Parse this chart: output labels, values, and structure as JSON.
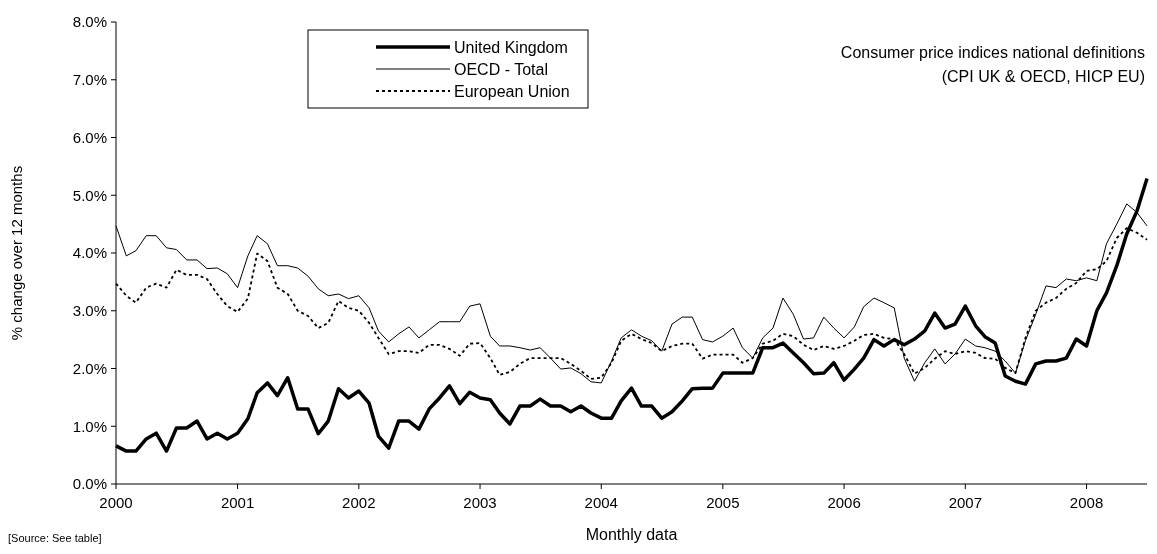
{
  "chart_data": {
    "type": "line",
    "xlabel": "Monthly data",
    "ylabel": "% change over 12 months",
    "annotations": [
      "Consumer price indices national definitions",
      "(CPI UK & OECD, HICP EU)",
      "[Source: See table]"
    ],
    "x": [
      "2000-01",
      "2000-02",
      "2000-03",
      "2000-04",
      "2000-05",
      "2000-06",
      "2000-07",
      "2000-08",
      "2000-09",
      "2000-10",
      "2000-11",
      "2000-12",
      "2001-01",
      "2001-02",
      "2001-03",
      "2001-04",
      "2001-05",
      "2001-06",
      "2001-07",
      "2001-08",
      "2001-09",
      "2001-10",
      "2001-11",
      "2001-12",
      "2002-01",
      "2002-02",
      "2002-03",
      "2002-04",
      "2002-05",
      "2002-06",
      "2002-07",
      "2002-08",
      "2002-09",
      "2002-10",
      "2002-11",
      "2002-12",
      "2003-01",
      "2003-02",
      "2003-03",
      "2003-04",
      "2003-05",
      "2003-06",
      "2003-07",
      "2003-08",
      "2003-09",
      "2003-10",
      "2003-11",
      "2003-12",
      "2004-01",
      "2004-02",
      "2004-03",
      "2004-04",
      "2004-05",
      "2004-06",
      "2004-07",
      "2004-08",
      "2004-09",
      "2004-10",
      "2004-11",
      "2004-12",
      "2005-01",
      "2005-02",
      "2005-03",
      "2005-04",
      "2005-05",
      "2005-06",
      "2005-07",
      "2005-08",
      "2005-09",
      "2005-10",
      "2005-11",
      "2005-12",
      "2006-01",
      "2006-02",
      "2006-03",
      "2006-04",
      "2006-05",
      "2006-06",
      "2006-07",
      "2006-08",
      "2006-09",
      "2006-10",
      "2006-11",
      "2006-12",
      "2007-01",
      "2007-02",
      "2007-03",
      "2007-04",
      "2007-05",
      "2007-06",
      "2007-07",
      "2007-08",
      "2007-09",
      "2007-10",
      "2007-11",
      "2007-12",
      "2008-01",
      "2008-02",
      "2008-03",
      "2008-04",
      "2008-05",
      "2008-06",
      "2008-07"
    ],
    "series": [
      {
        "name": "United Kingdom",
        "color": "#000000",
        "line_style": "solid",
        "values": [
          0.66,
          0.57,
          0.57,
          0.78,
          0.88,
          0.57,
          0.97,
          0.97,
          1.09,
          0.78,
          0.88,
          0.78,
          0.88,
          1.13,
          1.58,
          1.75,
          1.53,
          1.84,
          1.3,
          1.3,
          0.87,
          1.09,
          1.65,
          1.49,
          1.61,
          1.4,
          0.83,
          0.62,
          1.09,
          1.09,
          0.95,
          1.3,
          1.49,
          1.7,
          1.39,
          1.59,
          1.49,
          1.46,
          1.23,
          1.04,
          1.35,
          1.35,
          1.47,
          1.35,
          1.35,
          1.25,
          1.35,
          1.23,
          1.14,
          1.14,
          1.44,
          1.66,
          1.35,
          1.35,
          1.14,
          1.25,
          1.44,
          1.65,
          1.66,
          1.66,
          1.92,
          1.92,
          1.92,
          1.92,
          2.36,
          2.36,
          2.44,
          2.27,
          2.1,
          1.91,
          1.92,
          2.1,
          1.8,
          1.99,
          2.18,
          2.5,
          2.39,
          2.5,
          2.41,
          2.51,
          2.65,
          2.96,
          2.7,
          2.77,
          3.08,
          2.74,
          2.55,
          2.44,
          1.87,
          1.78,
          1.73,
          2.08,
          2.13,
          2.13,
          2.18,
          2.51,
          2.39,
          3.0,
          3.31,
          3.78,
          4.33,
          4.73,
          5.29
        ]
      },
      {
        "name": "OECD - Total",
        "color": "#000000",
        "line_style": "solid",
        "values": [
          4.47,
          3.95,
          4.04,
          4.3,
          4.3,
          4.09,
          4.06,
          3.88,
          3.88,
          3.73,
          3.74,
          3.64,
          3.4,
          3.95,
          4.3,
          4.16,
          3.78,
          3.78,
          3.74,
          3.6,
          3.38,
          3.26,
          3.29,
          3.21,
          3.26,
          3.05,
          2.65,
          2.46,
          2.6,
          2.72,
          2.53,
          2.67,
          2.81,
          2.81,
          2.81,
          3.08,
          3.12,
          2.56,
          2.39,
          2.39,
          2.36,
          2.32,
          2.36,
          2.18,
          1.99,
          2.01,
          1.91,
          1.77,
          1.75,
          2.13,
          2.53,
          2.67,
          2.56,
          2.48,
          2.3,
          2.77,
          2.89,
          2.89,
          2.5,
          2.46,
          2.56,
          2.7,
          2.36,
          2.18,
          2.53,
          2.7,
          3.22,
          2.94,
          2.51,
          2.53,
          2.89,
          2.7,
          2.53,
          2.72,
          3.07,
          3.22,
          3.14,
          3.05,
          2.18,
          1.78,
          2.1,
          2.34,
          2.08,
          2.25,
          2.51,
          2.39,
          2.36,
          2.3,
          2.13,
          1.92,
          2.48,
          2.94,
          3.43,
          3.4,
          3.55,
          3.52,
          3.57,
          3.52,
          4.16,
          4.5,
          4.85,
          4.7,
          4.47
        ]
      },
      {
        "name": "European Union",
        "color": "#000000",
        "line_style": "dotted",
        "values": [
          3.47,
          3.26,
          3.14,
          3.4,
          3.47,
          3.4,
          3.71,
          3.62,
          3.62,
          3.55,
          3.29,
          3.08,
          2.98,
          3.21,
          3.99,
          3.86,
          3.4,
          3.29,
          3.0,
          2.91,
          2.7,
          2.79,
          3.17,
          3.05,
          3.0,
          2.79,
          2.53,
          2.25,
          2.3,
          2.3,
          2.27,
          2.41,
          2.41,
          2.34,
          2.22,
          2.43,
          2.44,
          2.18,
          1.89,
          1.94,
          2.08,
          2.18,
          2.18,
          2.18,
          2.18,
          2.08,
          1.96,
          1.82,
          1.84,
          2.1,
          2.48,
          2.6,
          2.51,
          2.44,
          2.3,
          2.39,
          2.43,
          2.43,
          2.17,
          2.24,
          2.24,
          2.24,
          2.1,
          2.18,
          2.43,
          2.48,
          2.6,
          2.56,
          2.41,
          2.32,
          2.39,
          2.34,
          2.39,
          2.48,
          2.58,
          2.6,
          2.53,
          2.51,
          2.25,
          1.91,
          2.01,
          2.17,
          2.3,
          2.25,
          2.3,
          2.27,
          2.18,
          2.17,
          2.01,
          1.92,
          2.53,
          3.0,
          3.14,
          3.22,
          3.38,
          3.48,
          3.69,
          3.72,
          3.86,
          4.26,
          4.43,
          4.35,
          4.23
        ]
      }
    ],
    "xlim": [
      "2000-01",
      "2008-07"
    ],
    "xticks": [
      "2000",
      "2001",
      "2002",
      "2003",
      "2004",
      "2005",
      "2006",
      "2007",
      "2008"
    ],
    "ylim": [
      0,
      8
    ],
    "yticks": [
      {
        "value": 0,
        "label": "0.0%"
      },
      {
        "value": 1,
        "label": "1.0%"
      },
      {
        "value": 2,
        "label": "2.0%"
      },
      {
        "value": 3,
        "label": "3.0%"
      },
      {
        "value": 4,
        "label": "4.0%"
      },
      {
        "value": 5,
        "label": "5.0%"
      },
      {
        "value": 6,
        "label": "6.0%"
      },
      {
        "value": 7,
        "label": "7.0%"
      },
      {
        "value": 8,
        "label": "8.0%"
      }
    ],
    "grid": false,
    "legend": "top",
    "marker": "none"
  }
}
